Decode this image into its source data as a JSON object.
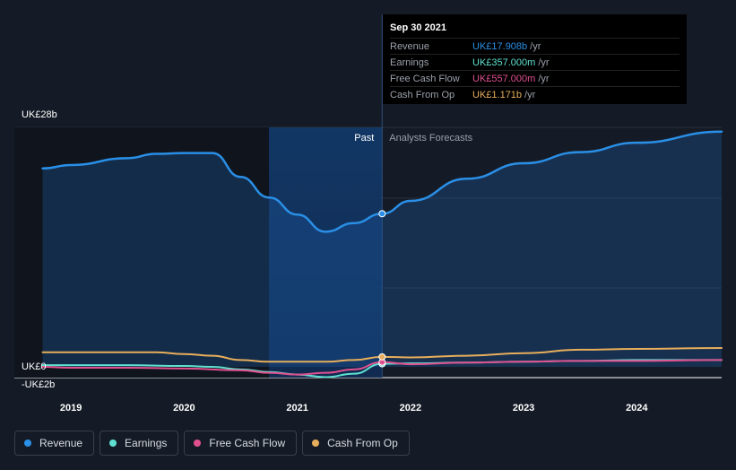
{
  "tooltip": {
    "date": "Sep 30 2021",
    "rows": [
      {
        "label": "Revenue",
        "value": "UK£17.908b",
        "unit": "/yr",
        "color": "#2a8fe6"
      },
      {
        "label": "Earnings",
        "value": "UK£357.000m",
        "unit": "/yr",
        "color": "#5fe0d0"
      },
      {
        "label": "Free Cash Flow",
        "value": "UK£557.000m",
        "unit": "/yr",
        "color": "#e0508f"
      },
      {
        "label": "Cash From Op",
        "value": "UK£1.171b",
        "unit": "/yr",
        "color": "#e7ae5b"
      }
    ]
  },
  "legend": [
    {
      "label": "Revenue",
      "color": "#2a8fe6"
    },
    {
      "label": "Earnings",
      "color": "#5fe0d0"
    },
    {
      "label": "Free Cash Flow",
      "color": "#e0508f"
    },
    {
      "label": "Cash From Op",
      "color": "#e7ae5b"
    }
  ],
  "chart_data": {
    "type": "line",
    "y_axis_labels": [
      "UK£28b",
      "UK£0",
      "-UK£2b"
    ],
    "ylim": [
      -2,
      28
    ],
    "x_ticks": [
      2019,
      2020,
      2021,
      2022,
      2023,
      2024
    ],
    "xlim": [
      2018.5,
      2024.75
    ],
    "past_label": "Past",
    "forecast_label": "Analysts Forecasts",
    "highlight_range": [
      2020.75,
      2021.75
    ],
    "tooltip_x": 2021.75,
    "series": [
      {
        "name": "Revenue",
        "color": "#2a8fe6",
        "fill": true,
        "points": [
          [
            2018.75,
            23.2
          ],
          [
            2019.0,
            23.6
          ],
          [
            2019.5,
            24.4
          ],
          [
            2019.75,
            24.9
          ],
          [
            2020.0,
            25.0
          ],
          [
            2020.25,
            25.0
          ],
          [
            2020.5,
            22.2
          ],
          [
            2020.75,
            19.8
          ],
          [
            2021.0,
            17.8
          ],
          [
            2021.25,
            15.8
          ],
          [
            2021.5,
            16.8
          ],
          [
            2021.75,
            17.908
          ],
          [
            2022.0,
            19.4
          ],
          [
            2022.5,
            22.0
          ],
          [
            2023.0,
            23.8
          ],
          [
            2023.5,
            25.1
          ],
          [
            2024.0,
            26.2
          ],
          [
            2024.75,
            27.5
          ]
        ]
      },
      {
        "name": "Earnings",
        "color": "#5fe0d0",
        "fill": false,
        "points": [
          [
            2018.75,
            0.2
          ],
          [
            2019.0,
            0.2
          ],
          [
            2019.5,
            0.2
          ],
          [
            2020.0,
            0.1
          ],
          [
            2020.25,
            0.0
          ],
          [
            2020.5,
            -0.3
          ],
          [
            2020.75,
            -0.6
          ],
          [
            2021.0,
            -0.9
          ],
          [
            2021.25,
            -1.2
          ],
          [
            2021.5,
            -0.8
          ],
          [
            2021.75,
            0.357
          ],
          [
            2022.0,
            0.4
          ],
          [
            2022.5,
            0.5
          ],
          [
            2023.0,
            0.6
          ],
          [
            2023.5,
            0.7
          ],
          [
            2024.0,
            0.8
          ],
          [
            2024.75,
            0.8
          ]
        ]
      },
      {
        "name": "Free Cash Flow",
        "color": "#e0508f",
        "fill": false,
        "points": [
          [
            2018.75,
            0.0
          ],
          [
            2019.0,
            -0.1
          ],
          [
            2019.5,
            -0.1
          ],
          [
            2020.0,
            -0.2
          ],
          [
            2020.5,
            -0.4
          ],
          [
            2020.75,
            -0.7
          ],
          [
            2021.0,
            -0.9
          ],
          [
            2021.25,
            -0.7
          ],
          [
            2021.5,
            -0.3
          ],
          [
            2021.75,
            0.557
          ],
          [
            2022.0,
            0.3
          ],
          [
            2022.5,
            0.5
          ],
          [
            2023.0,
            0.6
          ],
          [
            2023.5,
            0.7
          ],
          [
            2024.0,
            0.7
          ],
          [
            2024.75,
            0.8
          ]
        ]
      },
      {
        "name": "Cash From Op",
        "color": "#e7ae5b",
        "fill": false,
        "points": [
          [
            2018.75,
            1.7
          ],
          [
            2019.0,
            1.7
          ],
          [
            2019.5,
            1.7
          ],
          [
            2019.75,
            1.7
          ],
          [
            2020.0,
            1.5
          ],
          [
            2020.25,
            1.3
          ],
          [
            2020.5,
            0.8
          ],
          [
            2020.75,
            0.6
          ],
          [
            2021.0,
            0.6
          ],
          [
            2021.25,
            0.6
          ],
          [
            2021.5,
            0.8
          ],
          [
            2021.75,
            1.171
          ],
          [
            2022.0,
            1.1
          ],
          [
            2022.5,
            1.3
          ],
          [
            2023.0,
            1.6
          ],
          [
            2023.5,
            2.0
          ],
          [
            2024.0,
            2.1
          ],
          [
            2024.75,
            2.2
          ]
        ]
      }
    ]
  }
}
